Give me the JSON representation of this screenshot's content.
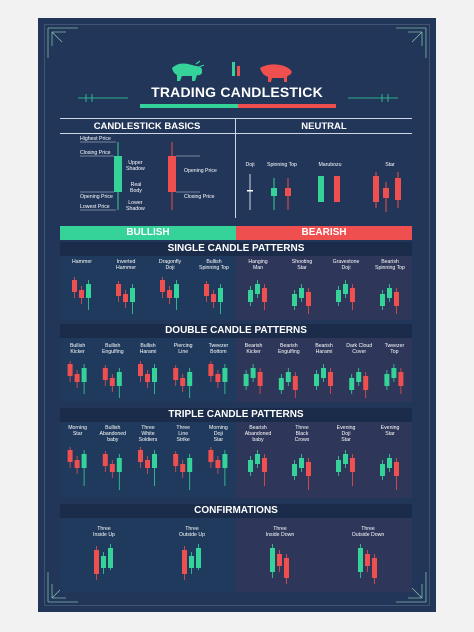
{
  "poster": {
    "title": "TRADING CANDLESTICK",
    "colors": {
      "background": "#213659",
      "bull": "#35d39a",
      "bear": "#ef4f4f"
    },
    "icons": [
      "bull-icon",
      "bear-icon"
    ]
  },
  "basics": {
    "title": "CANDLESTICK BASICS",
    "labels": {
      "highest_price": "Highest Price",
      "closing_price_left": "Closing Price",
      "opening_price_left": "Opening Price",
      "lowest_price": "Lowest Price",
      "upper_shadow": "Upper\nShadow",
      "real_body": "Real\nBody",
      "lower_shadow": "Lower\nShadow",
      "opening_price_right": "Opening Price",
      "closing_price_right": "Closing Price"
    }
  },
  "neutral": {
    "title": "NEUTRAL",
    "items": [
      "Doji",
      "Spinning Top",
      "Marubozu",
      "Star"
    ]
  },
  "headers": {
    "bullish": "BULLISH",
    "bearish": "BEARISH"
  },
  "single": {
    "title": "SINGLE CANDLE PATTERNS",
    "bullish": [
      "Hammer",
      "Inverted\nHammer",
      "Dragonfly\nDoji",
      "Bullish\nSpinning Top"
    ],
    "bearish": [
      "Hanging\nMan",
      "Shooting\nStar",
      "Gravestone\nDoji",
      "Bearish\nSpinning Top"
    ]
  },
  "double": {
    "title": "DOUBLE CANDLE PATTERNS",
    "bullish": [
      "Bullish\nKicker",
      "Bullish\nEngulfing",
      "Bullish\nHarami",
      "Piercing\nLine",
      "Tweezer\nBottom"
    ],
    "bearish": [
      "Bearish\nKicker",
      "Bearish\nEngulfing",
      "Bearish\nHarami",
      "Dark Cloud\nCover",
      "Tweezer\nTop"
    ]
  },
  "triple": {
    "title": "TRIPLE CANDLE PATTERNS",
    "bullish": [
      "Morning\nStar",
      "Bullish\nAbandoned\nbaby",
      "Three\nWhite\nSoldiers",
      "Three\nLine\nStrike",
      "Morning\nDoji\nStar"
    ],
    "bearish": [
      "Bearish\nAbandoned\nbaby",
      "Three\nBlack\nCrows",
      "Evening\nDoji\nStar",
      "Evening\nStar"
    ]
  },
  "confirmations": {
    "title": "CONFIRMATIONS",
    "bullish": [
      "Three\nInside Up",
      "Three\nOutside Up"
    ],
    "bearish": [
      "Three\nInside Down",
      "Three\nOutside Down"
    ]
  }
}
